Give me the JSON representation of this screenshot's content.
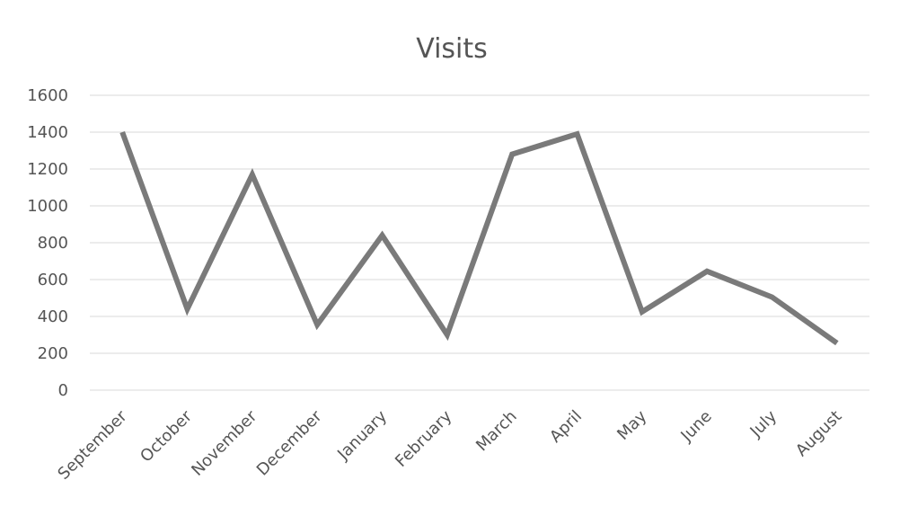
{
  "chart_data": {
    "type": "line",
    "title": "Visits",
    "xlabel": "",
    "ylabel": "",
    "categories": [
      "September",
      "October",
      "November",
      "December",
      "January",
      "February",
      "March",
      "April",
      "May",
      "June",
      "July",
      "August"
    ],
    "series": [
      {
        "values": [
          1400,
          440,
          1170,
          355,
          840,
          300,
          1280,
          1390,
          425,
          645,
          505,
          255
        ]
      }
    ],
    "ylim": [
      0,
      1600
    ],
    "yticks": [
      "0",
      "200",
      "400",
      "600",
      "800",
      "1000",
      "1200",
      "1400",
      "1600"
    ],
    "grid": true,
    "legend": "none",
    "colors": {
      "line": "#7a7a7a",
      "grid": "#e6e6e6",
      "text": "#555555"
    }
  }
}
